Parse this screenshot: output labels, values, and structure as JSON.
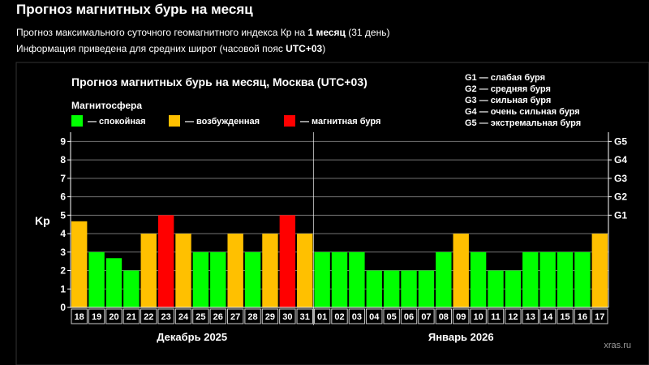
{
  "page": {
    "title": "Прогноз магнитных бурь на месяц",
    "info1": {
      "pre": "Прогноз максимального суточного геомагнитного индекса Кр на ",
      "bold": "1 месяц",
      "post": " (31 день)"
    },
    "info2": {
      "pre": "Информация приведена для средних широт (часовой пояс ",
      "bold": "UTC+03",
      "post": ")"
    }
  },
  "colors": {
    "background": "#000000",
    "calm": "#00ff00",
    "excited": "#ffc000",
    "storm": "#ff0000"
  },
  "chart_data": {
    "type": "bar",
    "title": "Прогноз магнитных бурь на месяц, Москва (UTC+03)",
    "ylabel": "Kp",
    "ylim": [
      0,
      9.5
    ],
    "yticks": [
      0,
      1,
      2,
      3,
      4,
      5,
      6,
      7,
      8,
      9
    ],
    "legend_title": "Магнитосфера",
    "legend": [
      {
        "key": "calm",
        "label": "— спокойная"
      },
      {
        "key": "excited",
        "label": "— возбужденная"
      },
      {
        "key": "storm",
        "label": "— магнитная буря"
      }
    ],
    "storm_levels": [
      {
        "level": "G1",
        "kp": 5,
        "label": "G1 — слабая буря"
      },
      {
        "level": "G2",
        "kp": 6,
        "label": "G2 — средняя буря"
      },
      {
        "level": "G3",
        "kp": 7,
        "label": "G3 — сильная буря"
      },
      {
        "level": "G4",
        "kp": 8,
        "label": "G4 — очень сильная буря"
      },
      {
        "level": "G5",
        "kp": 9,
        "label": "G5 — экстремальная буря"
      }
    ],
    "months": [
      {
        "label": "Декабрь 2025",
        "days": [
          "18",
          "19",
          "20",
          "21",
          "22",
          "23",
          "24",
          "25",
          "26",
          "27",
          "28",
          "29",
          "30",
          "31"
        ]
      },
      {
        "label": "Январь 2026",
        "days": [
          "01",
          "02",
          "03",
          "04",
          "05",
          "06",
          "07",
          "08",
          "09",
          "10",
          "11",
          "12",
          "13",
          "14",
          "15",
          "16",
          "17"
        ]
      }
    ],
    "values": [
      4.67,
      3,
      2.67,
      2,
      4,
      5,
      4,
      3,
      3,
      4,
      3,
      4,
      5,
      4,
      3,
      3,
      3,
      2,
      2,
      2,
      2,
      3,
      4,
      3,
      2,
      2,
      3,
      3,
      3,
      3,
      4
    ],
    "status": [
      "excited",
      "calm",
      "calm",
      "calm",
      "excited",
      "storm",
      "excited",
      "calm",
      "calm",
      "excited",
      "calm",
      "excited",
      "storm",
      "excited",
      "calm",
      "calm",
      "calm",
      "calm",
      "calm",
      "calm",
      "calm",
      "calm",
      "excited",
      "calm",
      "calm",
      "calm",
      "calm",
      "calm",
      "calm",
      "calm",
      "excited"
    ],
    "watermark": "xras.ru"
  }
}
